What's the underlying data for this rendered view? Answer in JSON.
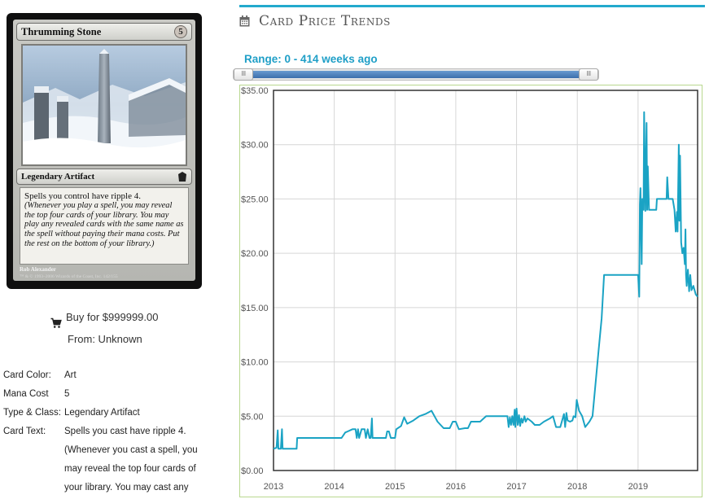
{
  "card": {
    "name": "Thrumming Stone",
    "mana_symbol": "5",
    "type_line": "Legendary Artifact",
    "rules_line": "Spells you control have ripple 4.",
    "reminder_text": "(Whenever you play a spell, you may reveal the top four cards of your library. You may play any revealed cards with the same name as the spell without paying their mana costs. Put the rest on the bottom of your library.)",
    "artist": "Rob Alexander",
    "copyright": "™ & © 1993–2006 Wizards of the Coast, Inc. 142/155"
  },
  "buy": {
    "label": "Buy for $999999.00",
    "from": "From: Unknown",
    "icon": "shopping-cart-icon"
  },
  "details": [
    {
      "label": "Card Color:",
      "value": "Art"
    },
    {
      "label": "Mana Cost",
      "value": "5"
    },
    {
      "label": "Type & Class:",
      "value": "Legendary Artifact"
    },
    {
      "label": "Card Text:",
      "value": "Spells you cast have ripple 4. (Whenever you cast a spell, you may reveal the top four cards of your library. You may cast any"
    }
  ],
  "panel": {
    "title": "Card Price Trends",
    "icon": "calendar-icon",
    "range_label": "Range: 0 - 414 weeks ago",
    "accent_color": "#23aacd"
  },
  "slider": {
    "min_weeks": 0,
    "max_weeks": 414,
    "handle_glyph": "III"
  },
  "chart_data": {
    "type": "line",
    "title": "",
    "xlabel": "",
    "ylabel": "",
    "ylim": [
      0,
      35
    ],
    "xlim": [
      2013.0,
      2019.98
    ],
    "y_ticks": [
      "$0.00",
      "$5.00",
      "$10.00",
      "$15.00",
      "$20.00",
      "$25.00",
      "$30.00",
      "$35.00"
    ],
    "x_ticks": [
      "2013",
      "2014",
      "2015",
      "2016",
      "2017",
      "2018",
      "2019"
    ],
    "grid": true,
    "line_color": "#1aa3c4",
    "series": [
      {
        "name": "",
        "points": [
          [
            2013.0,
            2.0
          ],
          [
            2013.05,
            2.1
          ],
          [
            2013.07,
            3.7
          ],
          [
            2013.08,
            2.0
          ],
          [
            2013.12,
            2.0
          ],
          [
            2013.14,
            3.8
          ],
          [
            2013.15,
            2.0
          ],
          [
            2013.25,
            2.0
          ],
          [
            2013.3,
            2.0
          ],
          [
            2013.38,
            2.0
          ],
          [
            2013.39,
            3.0
          ],
          [
            2013.6,
            3.0
          ],
          [
            2013.8,
            3.0
          ],
          [
            2014.0,
            3.0
          ],
          [
            2014.12,
            3.0
          ],
          [
            2014.18,
            3.5
          ],
          [
            2014.22,
            3.6
          ],
          [
            2014.3,
            3.8
          ],
          [
            2014.35,
            3.8
          ],
          [
            2014.37,
            3.0
          ],
          [
            2014.39,
            3.8
          ],
          [
            2014.41,
            3.0
          ],
          [
            2014.45,
            3.8
          ],
          [
            2014.5,
            3.8
          ],
          [
            2014.52,
            3.0
          ],
          [
            2014.55,
            3.8
          ],
          [
            2014.58,
            3.0
          ],
          [
            2014.6,
            3.0
          ],
          [
            2014.62,
            4.8
          ],
          [
            2014.63,
            3.0
          ],
          [
            2014.7,
            3.0
          ],
          [
            2014.78,
            3.0
          ],
          [
            2014.82,
            3.0
          ],
          [
            2014.85,
            3.0
          ],
          [
            2014.87,
            3.6
          ],
          [
            2014.9,
            3.6
          ],
          [
            2014.93,
            3.0
          ],
          [
            2015.0,
            3.0
          ],
          [
            2015.02,
            3.8
          ],
          [
            2015.1,
            4.1
          ],
          [
            2015.15,
            4.9
          ],
          [
            2015.2,
            4.3
          ],
          [
            2015.3,
            4.6
          ],
          [
            2015.4,
            5.0
          ],
          [
            2015.5,
            5.2
          ],
          [
            2015.6,
            5.5
          ],
          [
            2015.65,
            5.0
          ],
          [
            2015.7,
            4.5
          ],
          [
            2015.8,
            3.9
          ],
          [
            2015.9,
            3.9
          ],
          [
            2015.95,
            4.5
          ],
          [
            2016.0,
            4.5
          ],
          [
            2016.05,
            3.8
          ],
          [
            2016.15,
            3.9
          ],
          [
            2016.2,
            3.9
          ],
          [
            2016.25,
            4.5
          ],
          [
            2016.4,
            4.5
          ],
          [
            2016.5,
            5.0
          ],
          [
            2016.6,
            5.0
          ],
          [
            2016.7,
            5.0
          ],
          [
            2016.8,
            5.0
          ],
          [
            2016.85,
            5.0
          ],
          [
            2016.87,
            4.0
          ],
          [
            2016.89,
            4.9
          ],
          [
            2016.91,
            4.2
          ],
          [
            2016.93,
            5.0
          ],
          [
            2016.95,
            4.2
          ],
          [
            2016.97,
            5.6
          ],
          [
            2016.98,
            4.0
          ],
          [
            2017.0,
            5.7
          ],
          [
            2017.02,
            4.2
          ],
          [
            2017.04,
            5.1
          ],
          [
            2017.06,
            4.1
          ],
          [
            2017.08,
            4.8
          ],
          [
            2017.1,
            4.4
          ],
          [
            2017.13,
            5.0
          ],
          [
            2017.15,
            4.5
          ],
          [
            2017.18,
            4.8
          ],
          [
            2017.25,
            4.5
          ],
          [
            2017.3,
            4.2
          ],
          [
            2017.38,
            4.2
          ],
          [
            2017.45,
            4.5
          ],
          [
            2017.55,
            4.8
          ],
          [
            2017.6,
            5.0
          ],
          [
            2017.65,
            4.0
          ],
          [
            2017.72,
            4.0
          ],
          [
            2017.78,
            5.2
          ],
          [
            2017.8,
            4.0
          ],
          [
            2017.82,
            5.3
          ],
          [
            2017.84,
            4.6
          ],
          [
            2017.88,
            4.5
          ],
          [
            2017.92,
            4.6
          ],
          [
            2017.94,
            5.0
          ],
          [
            2017.97,
            4.9
          ],
          [
            2017.99,
            6.5
          ],
          [
            2018.03,
            5.5
          ],
          [
            2018.08,
            5.0
          ],
          [
            2018.13,
            4.0
          ],
          [
            2018.2,
            4.5
          ],
          [
            2018.25,
            5.0
          ],
          [
            2018.3,
            8.0
          ],
          [
            2018.35,
            11.0
          ],
          [
            2018.4,
            14.0
          ],
          [
            2018.44,
            18.0
          ],
          [
            2018.6,
            18.0
          ],
          [
            2018.8,
            18.0
          ],
          [
            2019.0,
            18.0
          ],
          [
            2019.02,
            16.0
          ],
          [
            2019.03,
            24.5
          ],
          [
            2019.04,
            26.0
          ],
          [
            2019.06,
            19.0
          ],
          [
            2019.07,
            25.0
          ],
          [
            2019.09,
            24.0
          ],
          [
            2019.1,
            33.0
          ],
          [
            2019.12,
            23.9
          ],
          [
            2019.14,
            32.0
          ],
          [
            2019.15,
            24.0
          ],
          [
            2019.16,
            28.0
          ],
          [
            2019.18,
            24.0
          ],
          [
            2019.2,
            24.0
          ],
          [
            2019.23,
            24.0
          ],
          [
            2019.27,
            24.0
          ],
          [
            2019.3,
            24.0
          ],
          [
            2019.31,
            25.0
          ],
          [
            2019.4,
            25.0
          ],
          [
            2019.47,
            25.0
          ],
          [
            2019.48,
            27.0
          ],
          [
            2019.5,
            25.0
          ],
          [
            2019.55,
            25.0
          ],
          [
            2019.57,
            25.0
          ],
          [
            2019.6,
            24.0
          ],
          [
            2019.62,
            22.0
          ],
          [
            2019.64,
            23.8
          ],
          [
            2019.65,
            22.0
          ],
          [
            2019.67,
            30.0
          ],
          [
            2019.68,
            23.0
          ],
          [
            2019.69,
            29.0
          ],
          [
            2019.71,
            21.0
          ],
          [
            2019.73,
            20.0
          ],
          [
            2019.75,
            20.5
          ],
          [
            2019.77,
            19.0
          ],
          [
            2019.78,
            22.2
          ],
          [
            2019.79,
            18.0
          ],
          [
            2019.8,
            17.0
          ],
          [
            2019.82,
            18.5
          ],
          [
            2019.84,
            16.5
          ],
          [
            2019.86,
            18.0
          ],
          [
            2019.88,
            16.6
          ],
          [
            2019.91,
            17.0
          ],
          [
            2019.95,
            16.2
          ],
          [
            2019.98,
            16.0
          ]
        ]
      }
    ]
  }
}
